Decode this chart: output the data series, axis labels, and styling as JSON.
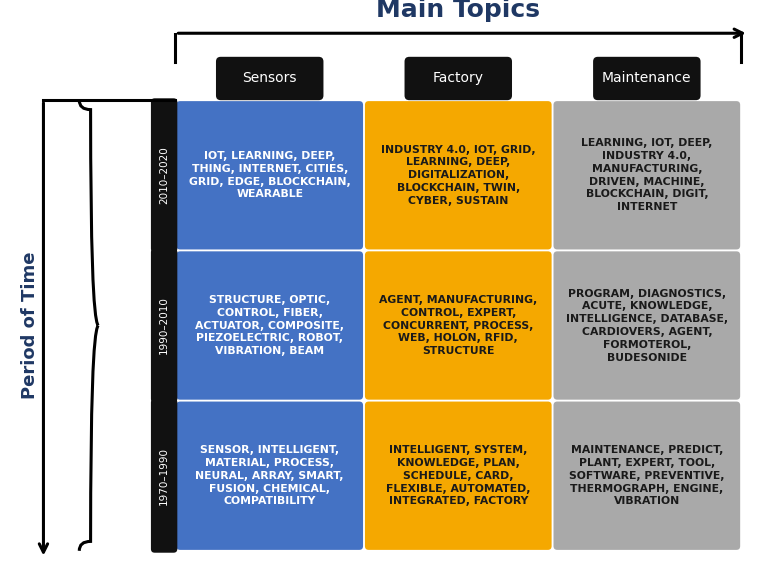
{
  "title": "Main Topics",
  "col_headers": [
    "Sensors",
    "Factory",
    "Maintenance"
  ],
  "row_headers": [
    "2010–2020",
    "1990–2010",
    "1970–1990"
  ],
  "y_label": "Period of Time",
  "cells": [
    [
      "IOT, LEARNING, DEEP,\nTHING, INTERNET, CITIES,\nGRID, EDGE, BLOCKCHAIN,\nWEARABLE",
      "INDUSTRY 4.0, IOT, GRID,\nLEARNING, DEEP,\nDIGITALIZATION,\nBLOCKCHAIN, TWIN,\nCYBER, SUSTAIN",
      "LEARNING, IOT, DEEP,\nINDUSTRY 4.0,\nMANUFACTURING,\nDRIVEN, MACHINE,\nBLOCKCHAIN, DIGIT,\nINTERNET"
    ],
    [
      "STRUCTURE, OPTIC,\nCONTROL, FIBER,\nACTUATOR, COMPOSITE,\nPIEZOELECTRIC, ROBOT,\nVIBRATION, BEAM",
      "AGENT, MANUFACTURING,\nCONTROL, EXPERT,\nCONCURRENT, PROCESS,\nWEB, HOLON, RFID,\nSTRUCTURE",
      "PROGRAM, DIAGNOSTICS,\nACUTE, KNOWLEDGE,\nINTELLIGENCE, DATABASE,\nCARDIOVERS, AGENT,\nFORMOTEROL,\nBUDESONIDE"
    ],
    [
      "SENSOR, INTELLIGENT,\nMATERIAL, PROCESS,\nNEURAL, ARRAY, SMART,\nFUSION, CHEMICAL,\nCOMPATIBILITY",
      "INTELLIGENT, SYSTEM,\nKNOWLEDGE, PLAN,\nSCHEDULE, CARD,\nFLEXIBLE, AUTOMATED,\nINTEGRATED, FACTORY",
      "MAINTENANCE, PREDICT,\nPLANT, EXPERT, TOOL,\nSOFTWARE, PREVENTIVE,\nTHERMOGRAPH, ENGINE,\nVIBRATION"
    ]
  ],
  "cell_colors": [
    [
      "#4472C4",
      "#F5A800",
      "#A9A9A9"
    ],
    [
      "#4472C4",
      "#F5A800",
      "#A9A9A9"
    ],
    [
      "#4472C4",
      "#F5A800",
      "#A9A9A9"
    ]
  ],
  "text_colors_col": [
    "#FFFFFF",
    "#1a1a1a",
    "#1a1a1a"
  ],
  "header_bg": "#111111",
  "header_text": "#FFFFFF",
  "title_color": "#1F3864",
  "title_fontsize": 18,
  "cell_fontsize": 7.8,
  "header_fontsize": 10,
  "row_label_fontsize": 7.5,
  "ylabel_fontsize": 13,
  "ylabel_color": "#1F3864"
}
